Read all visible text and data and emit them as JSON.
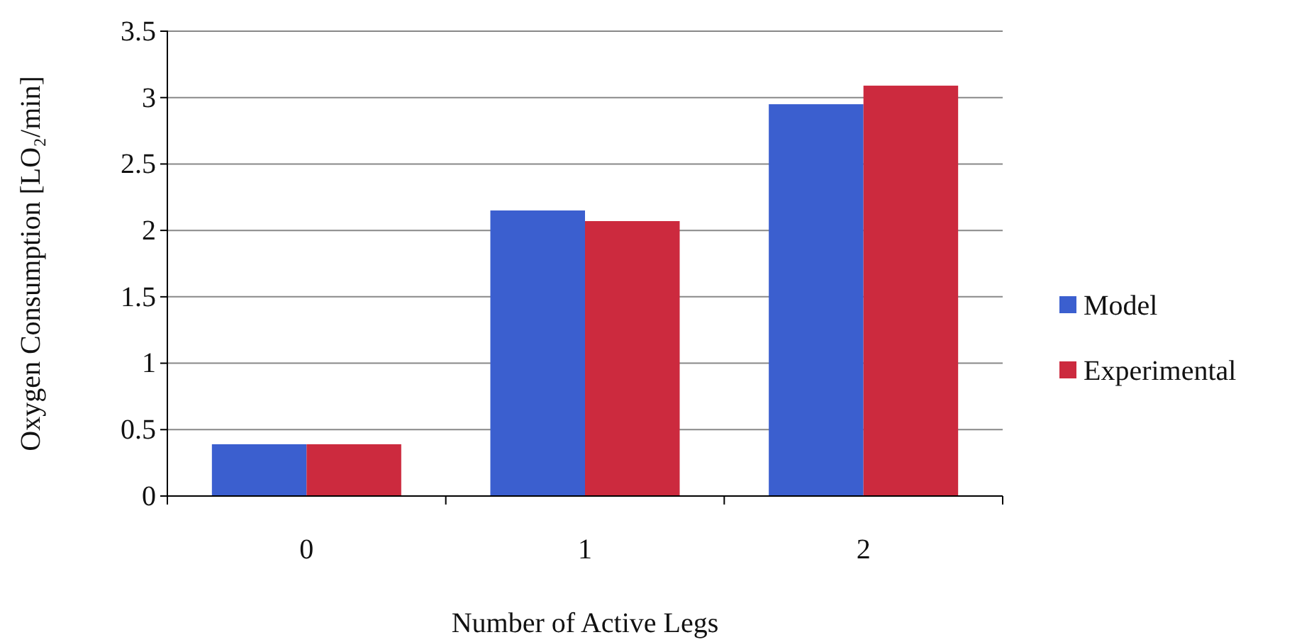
{
  "chart_data": {
    "type": "bar",
    "xlabel": "Number of Active Legs",
    "ylabel": "Oxygen Consumption [LO₂/min]",
    "categories": [
      "0",
      "1",
      "2"
    ],
    "series": [
      {
        "name": "Model",
        "color": "#3b5fcf",
        "values": [
          0.39,
          2.15,
          2.95
        ]
      },
      {
        "name": "Experimental",
        "color": "#cc2a3e",
        "values": [
          0.39,
          2.07,
          3.09
        ]
      }
    ],
    "ylim": [
      0,
      3.5
    ],
    "yticks": [
      0,
      0.5,
      1,
      1.5,
      2,
      2.5,
      3,
      3.5
    ],
    "grid": "y",
    "legend": "right"
  }
}
